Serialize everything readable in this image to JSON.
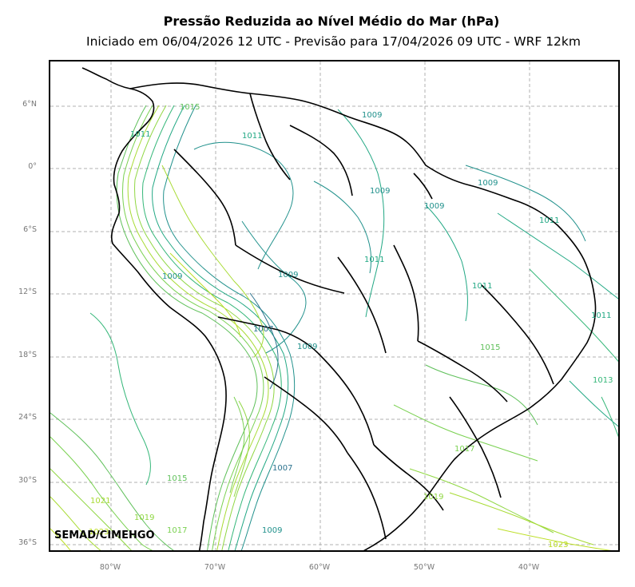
{
  "title": "Pressão Reduzida ao Nível Médio do Mar (hPa)",
  "subtitle": "Iniciado em 06/04/2026 12 UTC - Previsão para 17/04/2026 09 UTC - WRF 12km",
  "credit": "SEMAD/CIMEHGO",
  "lat_labels": [
    "6°N",
    "0°",
    "6°S",
    "12°S",
    "18°S",
    "24°S",
    "30°S",
    "36°S"
  ],
  "lon_labels": [
    "80°W",
    "70°W",
    "60°W",
    "50°W",
    "40°W"
  ],
  "contour_labels": [
    {
      "text": "1015",
      "color": "#5fc05a"
    },
    {
      "text": "1011",
      "color": "#22a884"
    },
    {
      "text": "1011",
      "color": "#22a884"
    },
    {
      "text": "1009",
      "color": "#21918c"
    },
    {
      "text": "1009",
      "color": "#21918c"
    },
    {
      "text": "1009",
      "color": "#21918c"
    },
    {
      "text": "1009",
      "color": "#21918c"
    },
    {
      "text": "1011",
      "color": "#22a884"
    },
    {
      "text": "1009",
      "color": "#21918c"
    },
    {
      "text": "1009",
      "color": "#21918c"
    },
    {
      "text": "1011",
      "color": "#22a884"
    },
    {
      "text": "1011",
      "color": "#22a884"
    },
    {
      "text": "1007",
      "color": "#2c728e"
    },
    {
      "text": "1009",
      "color": "#21918c"
    },
    {
      "text": "1015",
      "color": "#5fc05a"
    },
    {
      "text": "1011",
      "color": "#22a884"
    },
    {
      "text": "1013",
      "color": "#35b779"
    },
    {
      "text": "1017",
      "color": "#7ad151"
    },
    {
      "text": "1007",
      "color": "#2c728e"
    },
    {
      "text": "1015",
      "color": "#5fc05a"
    },
    {
      "text": "1021",
      "color": "#a8db34"
    },
    {
      "text": "1019",
      "color": "#90d743"
    },
    {
      "text": "1017",
      "color": "#7ad151"
    },
    {
      "text": "1009",
      "color": "#21918c"
    },
    {
      "text": "1019",
      "color": "#90d743"
    },
    {
      "text": "1023",
      "color": "#bddf26"
    },
    {
      "text": "1023",
      "color": "#bddf26"
    }
  ],
  "colors": {
    "gridline": "#b0b0b0",
    "coast": "#000000",
    "contour_low": "#2c728e",
    "contour_mid": "#22a884",
    "contour_high": "#a8db34"
  }
}
